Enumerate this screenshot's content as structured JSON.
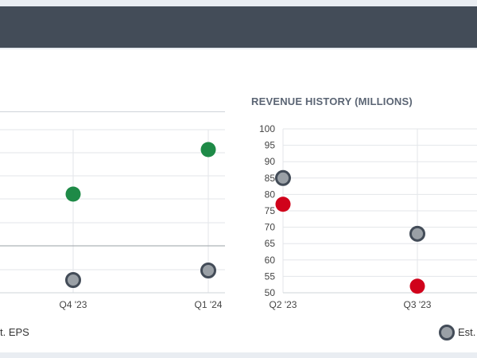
{
  "header": {
    "title": ""
  },
  "charts": {
    "left": {
      "legend_label": "t. EPS"
    },
    "right": {
      "title": "REVENUE HISTORY (MILLIONS)",
      "legend_label": "Est. I"
    }
  },
  "colors": {
    "beat": "#1e8a47",
    "miss": "#d0021b",
    "estimate_fill": "#9aa0a6",
    "estimate_stroke": "#434c58"
  },
  "chart_data": [
    {
      "type": "scatter",
      "title": "",
      "x": [
        "Q4 '23",
        "Q1 '24"
      ],
      "series": [
        {
          "name": "",
          "values": [
            null,
            null
          ]
        }
      ],
      "xlabel": "",
      "ylabel": "",
      "legend": [
        "t. EPS"
      ],
      "grid": true
    },
    {
      "type": "scatter",
      "title": "REVENUE HISTORY (MILLIONS)",
      "x": [
        "Q2 '23",
        "Q3 '23"
      ],
      "yticks": [
        100,
        95,
        90,
        85,
        80,
        75,
        70,
        65,
        60,
        55,
        50
      ],
      "ylim": [
        50,
        100
      ],
      "series": [
        {
          "name": "",
          "values": [
            85,
            68
          ],
          "style": "estimate"
        },
        {
          "name": "",
          "values": [
            77,
            52
          ],
          "style": "miss"
        }
      ],
      "xlabel": "",
      "ylabel": "",
      "legend": [
        "Est. I"
      ],
      "grid": true
    }
  ]
}
